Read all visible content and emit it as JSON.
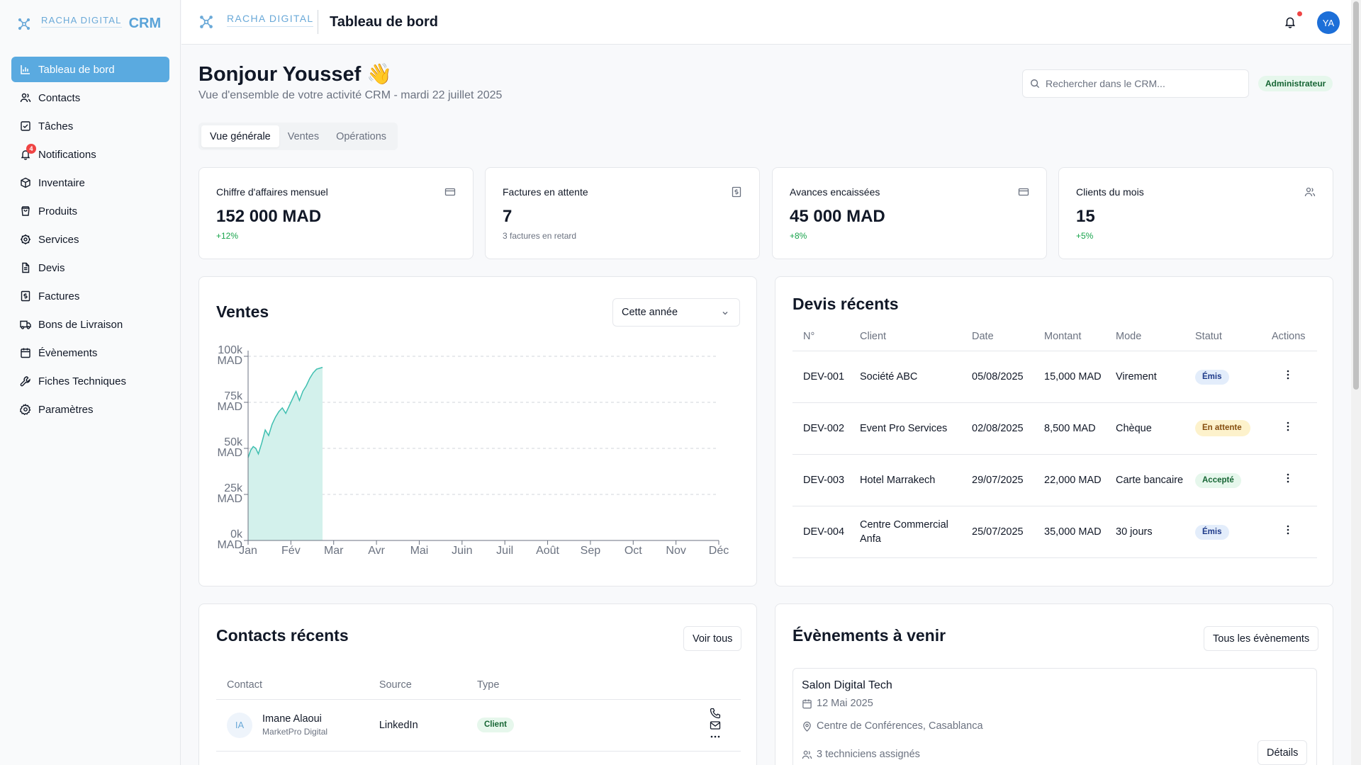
{
  "brand": {
    "name": "RACHA DIGITAL",
    "crm": "CRM"
  },
  "topbar": {
    "title": "Tableau de bord",
    "avatar_initials": "YA"
  },
  "sidebar": {
    "items": [
      {
        "label": "Tableau de bord",
        "icon": "bar-chart-icon",
        "active": true
      },
      {
        "label": "Contacts",
        "icon": "users-icon"
      },
      {
        "label": "Tâches",
        "icon": "checkbox-icon"
      },
      {
        "label": "Notifications",
        "icon": "bell-icon",
        "badge": "4"
      },
      {
        "label": "Inventaire",
        "icon": "package-icon"
      },
      {
        "label": "Produits",
        "icon": "shopping-bag-icon"
      },
      {
        "label": "Services",
        "icon": "cog-icon"
      },
      {
        "label": "Devis",
        "icon": "file-text-icon"
      },
      {
        "label": "Factures",
        "icon": "invoice-icon"
      },
      {
        "label": "Bons de Livraison",
        "icon": "truck-icon"
      },
      {
        "label": "Évènements",
        "icon": "calendar-icon"
      },
      {
        "label": "Fiches Techniques",
        "icon": "wrench-icon"
      },
      {
        "label": "Paramètres",
        "icon": "settings-icon"
      }
    ]
  },
  "header": {
    "greeting": "Bonjour Youssef 👋",
    "subtitle": "Vue d'ensemble de votre activité CRM - mardi 22 juillet 2025",
    "search_placeholder": "Rechercher dans le CRM...",
    "role": "Administrateur"
  },
  "tabs": [
    {
      "label": "Vue générale",
      "active": true
    },
    {
      "label": "Ventes"
    },
    {
      "label": "Opérations"
    }
  ],
  "kpis": [
    {
      "label": "Chiffre d'affaires mensuel",
      "value": "152 000 MAD",
      "delta": "+12%",
      "icon": "credit-card-icon"
    },
    {
      "label": "Factures en attente",
      "value": "7",
      "delta": "3 factures en retard",
      "icon": "invoice-icon"
    },
    {
      "label": "Avances encaissées",
      "value": "45 000 MAD",
      "delta": "+8%",
      "icon": "credit-card-icon"
    },
    {
      "label": "Clients du mois",
      "value": "15",
      "delta": "+5%",
      "icon": "users-icon"
    }
  ],
  "sales": {
    "title": "Ventes",
    "period": "Cette année",
    "accent": "#3fbfb0",
    "fill": "#d3f1ec"
  },
  "chart_data": {
    "type": "area",
    "x": [
      "Jan",
      "Fév",
      "Mar",
      "Avr",
      "Mai",
      "Juin",
      "Juil",
      "Août",
      "Sep",
      "Oct",
      "Nov",
      "Déc"
    ],
    "y_ticks": [
      "0k MAD",
      "25k MAD",
      "50k MAD",
      "75k MAD",
      "100k MAD"
    ],
    "ylim": [
      0,
      100000
    ],
    "series": [
      {
        "points": [
          [
            0,
            45000
          ],
          [
            0.06,
            49000
          ],
          [
            0.12,
            51000
          ],
          [
            0.18,
            50000
          ],
          [
            0.24,
            47000
          ],
          [
            0.32,
            53000
          ],
          [
            0.4,
            60000
          ],
          [
            0.48,
            57000
          ],
          [
            0.56,
            63000
          ],
          [
            0.64,
            67000
          ],
          [
            0.72,
            70000
          ],
          [
            0.8,
            72000
          ],
          [
            0.88,
            69000
          ],
          [
            0.96,
            73000
          ],
          [
            1.04,
            77000
          ],
          [
            1.12,
            81000
          ],
          [
            1.2,
            76000
          ],
          [
            1.28,
            81000
          ],
          [
            1.36,
            84000
          ],
          [
            1.44,
            88000
          ],
          [
            1.52,
            91000
          ],
          [
            1.6,
            93000
          ],
          [
            1.74,
            94000
          ]
        ]
      }
    ],
    "grid": true
  },
  "devis": {
    "title": "Devis récents",
    "columns": [
      "N°",
      "Client",
      "Date",
      "Montant",
      "Mode",
      "Statut",
      "Actions"
    ],
    "rows": [
      {
        "num": "DEV-001",
        "client": "Société ABC",
        "date": "05/08/2025",
        "amount": "15,000 MAD",
        "mode": "Virement",
        "status": "Émis",
        "status_kind": "emis"
      },
      {
        "num": "DEV-002",
        "client": "Event Pro Services",
        "date": "02/08/2025",
        "amount": "8,500 MAD",
        "mode": "Chèque",
        "status": "En attente",
        "status_kind": "attente"
      },
      {
        "num": "DEV-003",
        "client": "Hotel Marrakech",
        "date": "29/07/2025",
        "amount": "22,000 MAD",
        "mode": "Carte bancaire",
        "status": "Accepté",
        "status_kind": "accepte"
      },
      {
        "num": "DEV-004",
        "client": "Centre Commercial Anfa",
        "date": "25/07/2025",
        "amount": "35,000 MAD",
        "mode": "30 jours",
        "status": "Émis",
        "status_kind": "emis"
      }
    ]
  },
  "contacts": {
    "title": "Contacts récents",
    "view_all": "Voir tous",
    "columns": [
      "Contact",
      "Source",
      "Type"
    ],
    "rows": [
      {
        "initials": "IA",
        "name": "Imane Alaoui",
        "company": "MarketPro Digital",
        "source": "LinkedIn",
        "type": "Client"
      }
    ]
  },
  "events": {
    "title": "Évènements à venir",
    "all_button": "Tous les évènements",
    "items": [
      {
        "title": "Salon Digital Tech",
        "date": "12 Mai 2025",
        "location": "Centre de Conférences, Casablanca",
        "techs": "3 techniciens assignés",
        "details": "Détails"
      }
    ]
  }
}
